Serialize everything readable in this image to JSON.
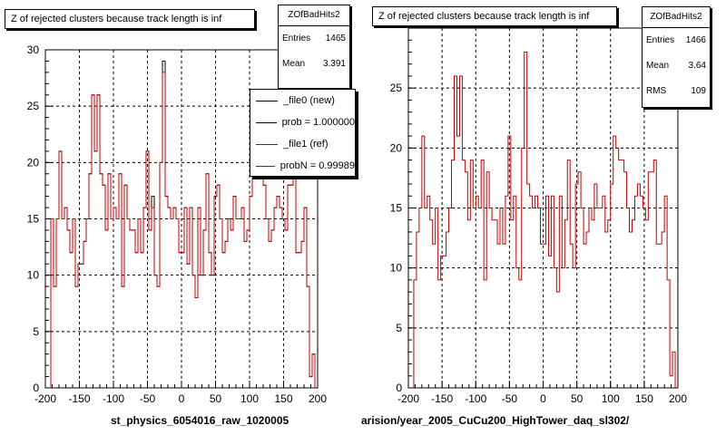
{
  "chart_data": [
    {
      "type": "histogram",
      "title": "Z of rejected clusters  because track length is inf",
      "xlabel": "st_physics_6054016_raw_1020005",
      "ylabel": "",
      "xlim": [
        -200,
        200
      ],
      "ylim": [
        0,
        30
      ],
      "x_ticks": [
        -200,
        -150,
        -100,
        -50,
        0,
        50,
        100,
        150,
        200
      ],
      "y_ticks": [
        0,
        5,
        10,
        15,
        20,
        25,
        30
      ],
      "grid": true,
      "bin_width": 4,
      "bin_start": -192,
      "series": [
        {
          "name": "_file0 (new)",
          "color": "#000000",
          "values": [
            15,
            9,
            15,
            21,
            15,
            16,
            14,
            12,
            15,
            9,
            11,
            11,
            13,
            15,
            19,
            26,
            21,
            26,
            19,
            18,
            14,
            19,
            15,
            16,
            15,
            19,
            9,
            18,
            15,
            14,
            14,
            12,
            15,
            12,
            16,
            21,
            14,
            17,
            10,
            9,
            20,
            29,
            17,
            16,
            15,
            16,
            15,
            12,
            12,
            16,
            11,
            16,
            10,
            8,
            16,
            10,
            14,
            19,
            12,
            10,
            17,
            18,
            15,
            12,
            13,
            15,
            14,
            17,
            15,
            15,
            16,
            13,
            14,
            17,
            21,
            20,
            19,
            19,
            18,
            15,
            13,
            14,
            16,
            17,
            16,
            15,
            14,
            18,
            18,
            19,
            12,
            12,
            13,
            16,
            9,
            1,
            3
          ]
        },
        {
          "name": "_file1 (ref)",
          "color": "#c00000",
          "values": [
            15,
            9,
            15,
            21,
            15,
            16,
            14,
            12,
            15,
            9,
            11,
            11,
            13,
            15,
            19,
            26,
            21,
            26,
            19,
            18,
            14,
            19,
            15,
            16,
            15,
            19,
            9,
            18,
            15,
            14,
            14,
            12,
            15,
            12,
            16,
            21,
            14,
            16,
            10,
            9,
            20,
            28,
            17,
            16,
            15,
            16,
            15,
            12,
            12,
            16,
            11,
            16,
            10,
            8,
            16,
            10,
            14,
            19,
            12,
            10,
            17,
            18,
            15,
            12,
            13,
            15,
            14,
            17,
            15,
            15,
            16,
            13,
            14,
            17,
            21,
            20,
            19,
            19,
            18,
            15,
            13,
            14,
            16,
            17,
            16,
            15,
            14,
            18,
            18,
            19,
            12,
            12,
            13,
            16,
            9,
            1,
            3
          ]
        }
      ],
      "stats": {
        "name": "ZOfBadHits2",
        "entries_label": "Entries",
        "entries": "1465",
        "mean_label": "Mean",
        "mean": "3.391"
      },
      "legend": [
        "_file0 (new)",
        "prob = 1.000000",
        "_file1 (ref)",
        "probN = 0.99989"
      ]
    },
    {
      "type": "histogram",
      "title": "Z of rejected clusters  because track length is inf",
      "xlabel": "arision/year_2005_CuCu200_HighTower_daq_sl302/",
      "ylabel": "",
      "xlim": [
        -200,
        200
      ],
      "ylim": [
        0,
        30
      ],
      "x_ticks": [
        -200,
        -150,
        -100,
        -50,
        0,
        50,
        100,
        150,
        200
      ],
      "y_ticks": [
        0,
        5,
        10,
        15,
        20,
        25
      ],
      "grid": true,
      "bin_width": 4,
      "bin_start": -192,
      "series": [
        {
          "name": "_file1 (ref)",
          "color": "#c00000",
          "values": [
            9,
            13,
            15,
            21,
            15,
            16,
            14,
            12,
            15,
            9,
            11,
            11,
            13,
            15,
            19,
            26,
            21,
            26,
            19,
            18,
            14,
            19,
            15,
            16,
            15,
            19,
            9,
            18,
            15,
            14,
            14,
            12,
            15,
            12,
            16,
            21,
            14,
            16,
            10,
            9,
            20,
            28,
            17,
            16,
            15,
            16,
            15,
            12,
            12,
            16,
            11,
            16,
            10,
            8,
            16,
            10,
            14,
            19,
            12,
            10,
            17,
            18,
            15,
            12,
            13,
            15,
            14,
            17,
            15,
            15,
            16,
            13,
            14,
            17,
            21,
            20,
            19,
            19,
            18,
            15,
            13,
            14,
            16,
            17,
            16,
            15,
            14,
            18,
            18,
            19,
            12,
            12,
            13,
            16,
            9,
            1,
            3
          ]
        }
      ],
      "stats": {
        "name": "ZOfBadHits2",
        "entries_label": "Entries",
        "entries": "1466",
        "mean_label": "Mean",
        "mean": "3.64",
        "rms_label": "RMS",
        "rms": "109"
      }
    }
  ]
}
